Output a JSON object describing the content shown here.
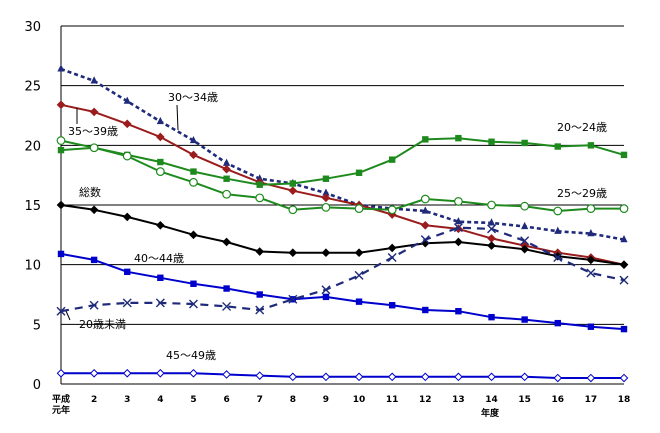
{
  "chart_data": {
    "type": "line",
    "title": "",
    "xlabel": "年度",
    "ylabel": "",
    "ylim": [
      0,
      30
    ],
    "yticks": [
      0,
      5,
      10,
      15,
      20,
      25,
      30
    ],
    "grid": true,
    "categories": [
      "平成\n元年",
      "2",
      "3",
      "4",
      "5",
      "6",
      "7",
      "8",
      "9",
      "10",
      "11",
      "12",
      "13",
      "14",
      "15",
      "16",
      "17",
      "18"
    ],
    "series": [
      {
        "name": "30～34歳",
        "color": "#1f2a7a",
        "style": "dotted",
        "marker": "triangle",
        "values": [
          26.4,
          25.4,
          23.7,
          22.0,
          20.4,
          18.5,
          17.2,
          16.8,
          16.0,
          15.0,
          14.7,
          14.5,
          13.6,
          13.5,
          13.2,
          12.8,
          12.6,
          12.1
        ]
      },
      {
        "name": "35～39歳",
        "color": "#9a1c1c",
        "style": "solid",
        "marker": "diamond",
        "values": [
          23.4,
          22.8,
          21.8,
          20.7,
          19.2,
          18.0,
          16.9,
          16.2,
          15.6,
          15.0,
          14.2,
          13.3,
          13.0,
          12.2,
          11.6,
          11.0,
          10.6,
          10.0
        ]
      },
      {
        "name": "20～24歳",
        "color": "#1e8a1e",
        "style": "solid",
        "marker": "square",
        "values": [
          19.6,
          19.8,
          19.2,
          18.6,
          17.8,
          17.2,
          16.7,
          16.8,
          17.2,
          17.7,
          18.8,
          20.5,
          20.6,
          20.3,
          20.2,
          19.9,
          20.0,
          19.2
        ]
      },
      {
        "name": "25～29歳",
        "color": "#1e8a1e",
        "style": "solid",
        "marker": "circle-open",
        "values": [
          20.4,
          19.8,
          19.1,
          17.8,
          16.9,
          15.9,
          15.6,
          14.6,
          14.8,
          14.7,
          14.6,
          15.5,
          15.3,
          15.0,
          14.9,
          14.5,
          14.7,
          14.7
        ]
      },
      {
        "name": "総数",
        "color": "#000000",
        "style": "solid",
        "marker": "diamond",
        "values": [
          15.0,
          14.6,
          14.0,
          13.3,
          12.5,
          11.9,
          11.1,
          11.0,
          11.0,
          11.0,
          11.4,
          11.8,
          11.9,
          11.6,
          11.3,
          10.7,
          10.4,
          10.0
        ]
      },
      {
        "name": "40～44歳",
        "color": "#0000cc",
        "style": "solid",
        "marker": "square",
        "values": [
          10.9,
          10.4,
          9.4,
          8.9,
          8.4,
          8.0,
          7.5,
          7.1,
          7.3,
          6.9,
          6.6,
          6.2,
          6.1,
          5.6,
          5.4,
          5.1,
          4.8,
          4.6
        ]
      },
      {
        "name": "20歳未満",
        "color": "#1f2a7a",
        "style": "dashed",
        "marker": "x",
        "values": [
          6.1,
          6.6,
          6.8,
          6.8,
          6.7,
          6.5,
          6.2,
          7.1,
          7.9,
          9.1,
          10.6,
          12.1,
          13.1,
          13.0,
          12.0,
          10.6,
          9.3,
          8.7
        ]
      },
      {
        "name": "45～49歳",
        "color": "#0000cc",
        "style": "solid",
        "marker": "diamond-open",
        "values": [
          0.9,
          0.9,
          0.9,
          0.9,
          0.9,
          0.8,
          0.7,
          0.6,
          0.6,
          0.6,
          0.6,
          0.6,
          0.6,
          0.6,
          0.6,
          0.5,
          0.5,
          0.5
        ]
      }
    ]
  }
}
